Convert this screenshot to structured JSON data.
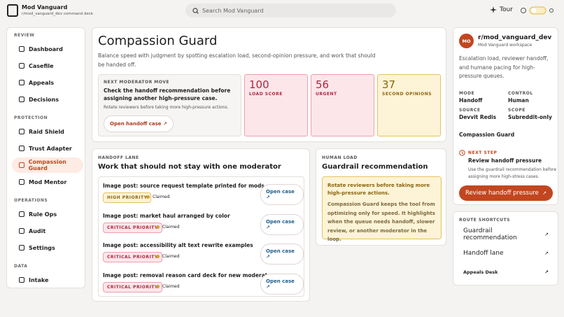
{
  "header": {
    "app_name": "Mod Vanguard",
    "app_subtitle": "r/mod_vanguard_dev command deck",
    "search_placeholder": "Search Mod Vanguard",
    "tour": "Tour"
  },
  "sidebar": {
    "sections": [
      {
        "title": "REVIEW",
        "items": [
          {
            "label": "Dashboard"
          },
          {
            "label": "Casefile"
          },
          {
            "label": "Appeals"
          },
          {
            "label": "Decisions"
          }
        ]
      },
      {
        "title": "PROTECTION",
        "items": [
          {
            "label": "Raid Shield"
          },
          {
            "label": "Trust Adapter"
          },
          {
            "label": "Compassion Guard",
            "active": true
          },
          {
            "label": "Mod Mentor"
          }
        ]
      },
      {
        "title": "OPERATIONS",
        "items": [
          {
            "label": "Rule Ops"
          },
          {
            "label": "Audit"
          },
          {
            "label": "Settings"
          }
        ]
      },
      {
        "title": "DATA",
        "items": [
          {
            "label": "Intake"
          }
        ]
      }
    ]
  },
  "hero": {
    "title": "Compassion Guard",
    "description": "Balance speed with judgment by spotting escalation load, second-opinion pressure, and work that should be handed off.",
    "next_move": {
      "eyebrow": "NEXT MODERATOR MOVE",
      "heading": "Check the handoff recommendation before assigning another high-pressure case.",
      "note": "Rotate reviewers before taking more high-pressure actions.",
      "button": "Open handoff case"
    },
    "stats": [
      {
        "value": "100",
        "label": "LOAD SCORE",
        "tone": "rose"
      },
      {
        "value": "56",
        "label": "URGENT",
        "tone": "rose"
      },
      {
        "value": "37",
        "label": "SECOND OPINIONS",
        "tone": "amber"
      }
    ]
  },
  "handoff_lane": {
    "eyebrow": "HANDOFF LANE",
    "title": "Work that should not stay with one moderator",
    "items": [
      {
        "title": "Image post: source request template printed for mods",
        "priority": "HIGH PRIORITY",
        "tone": "amber",
        "status": "Claimed",
        "action": "Open case"
      },
      {
        "title": "Image post: market haul arranged by color",
        "priority": "CRITICAL PRIORITY",
        "tone": "rose",
        "status": "Claimed",
        "action": "Open case"
      },
      {
        "title": "Image post: accessibility alt text rewrite examples",
        "priority": "CRITICAL PRIORITY",
        "tone": "rose",
        "status": "Claimed",
        "action": "Open case"
      },
      {
        "title": "Image post: removal reason card deck for new moderators",
        "priority": "CRITICAL PRIORITY",
        "tone": "rose",
        "status": "Claimed",
        "action": "Open case"
      }
    ]
  },
  "human_load": {
    "eyebrow": "HUMAN LOAD",
    "title": "Guardrail recommendation",
    "callout_heading": "Rotate reviewers before taking more high-pressure actions.",
    "callout_body": "Compassion Guard keeps the tool from optimizing only for speed. It highlights when the queue needs handoff, slower review, or another moderator in the loop."
  },
  "workspace": {
    "avatar": "MO",
    "name": "r/mod_vanguard_dev",
    "subtitle": "Mod Vanguard workspace",
    "description": "Escalation load, reviewer handoff, and humane pacing for high-pressure queues.",
    "facts": [
      {
        "label": "MODE",
        "value": "Handoff"
      },
      {
        "label": "CONTROL",
        "value": "Human"
      },
      {
        "label": "SOURCE",
        "value": "Devvit Redis"
      },
      {
        "label": "SCOPE",
        "value": "Subreddit-only"
      }
    ],
    "section": "Compassion Guard",
    "next_step": {
      "eyebrow": "NEXT STEP",
      "title": "Review handoff pressure",
      "text": "Use the guardrail recommendation before assigning more high-stress cases.",
      "button": "Review handoff pressure"
    }
  },
  "route_shortcuts": {
    "title": "ROUTE SHORTCUTS",
    "items": [
      "Guardrail recommendation",
      "Handoff lane",
      "Appeals Desk"
    ]
  }
}
